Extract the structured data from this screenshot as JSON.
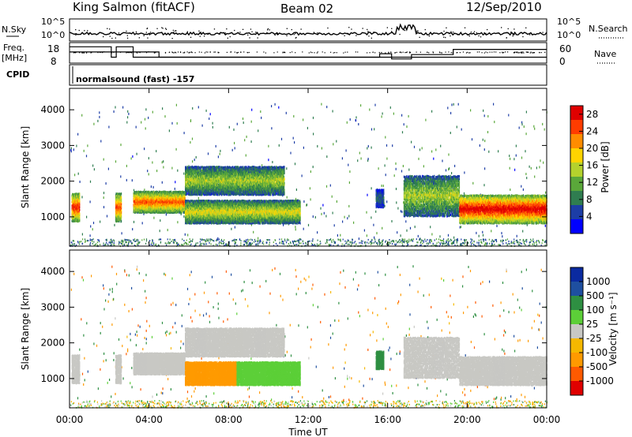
{
  "header": {
    "station": "King Salmon (fitACF)",
    "beam": "Beam 02",
    "date": "12/Sep/2010"
  },
  "summary_panel": {
    "nsky_label": "N.Sky",
    "nsearch_label": "N.Search",
    "nsky_ticks": [
      "10^5",
      "10^0"
    ],
    "nsearch_ticks": [
      "10^5",
      "10^0"
    ],
    "freq_label": "Freq.",
    "freq_unit": "[MHz]",
    "freq_ticks": [
      "18",
      "8"
    ],
    "nave_label": "Nave",
    "nave_ticks": [
      "60",
      "0"
    ],
    "cpid_label": "CPID",
    "cpid_text": "normalsound (fast) -157"
  },
  "colors": {
    "power_bar": [
      "#0000ff",
      "#1c3da6",
      "#2f7d50",
      "#5aa83a",
      "#b4d22d",
      "#ffd400",
      "#ff8c00",
      "#ff3c00",
      "#e00000"
    ],
    "velocity_bar": [
      "#e00000",
      "#ff5a00",
      "#ff9a00",
      "#f5b800",
      "#c8c8c4",
      "#5ccf38",
      "#2e8f42",
      "#1e4fa0",
      "#0a2aa0"
    ],
    "velocity_bar_note": ""
  },
  "chart_data": [
    {
      "type": "heatmap",
      "title": "",
      "xlabel": "Time UT",
      "ylabel": "Slant Range [km]",
      "x_ticks": [
        "00:00",
        "04:00",
        "08:00",
        "12:00",
        "16:00",
        "20:00",
        "00:00"
      ],
      "xlim_hours": [
        0,
        24
      ],
      "y_ticks": [
        1000,
        2000,
        3000,
        4000
      ],
      "ylim": [
        180,
        4600
      ],
      "colorbar": {
        "label": "Power [dB]",
        "ticks": [
          4,
          8,
          12,
          16,
          20,
          24,
          28
        ],
        "range": [
          0,
          30
        ]
      },
      "scatter_regions": [
        {
          "t_start": 0.1,
          "t_end": 0.5,
          "r_low": 900,
          "r_high": 1700,
          "level": 22
        },
        {
          "t_start": 2.3,
          "t_end": 2.6,
          "r_low": 900,
          "r_high": 1700,
          "level": 20
        },
        {
          "t_start": 3.2,
          "t_end": 5.8,
          "r_low": 1150,
          "r_high": 1750,
          "level": 20
        },
        {
          "t_start": 5.8,
          "t_end": 10.8,
          "r_low": 1650,
          "r_high": 2450,
          "level": 12
        },
        {
          "t_start": 5.8,
          "t_end": 11.6,
          "r_low": 850,
          "r_high": 1500,
          "level": 14
        },
        {
          "t_start": 15.4,
          "t_end": 15.8,
          "r_low": 1300,
          "r_high": 1800,
          "level": 6
        },
        {
          "t_start": 16.8,
          "t_end": 19.6,
          "r_low": 1050,
          "r_high": 2200,
          "level": 12
        },
        {
          "t_start": 19.6,
          "t_end": 24.0,
          "r_low": 850,
          "r_high": 1650,
          "level": 24
        }
      ]
    },
    {
      "type": "heatmap",
      "title": "",
      "xlabel": "Time UT",
      "ylabel": "Slant Range [km]",
      "x_ticks": [
        "00:00",
        "04:00",
        "08:00",
        "12:00",
        "16:00",
        "20:00",
        "00:00"
      ],
      "xlim_hours": [
        0,
        24
      ],
      "y_ticks": [
        1000,
        2000,
        3000,
        4000
      ],
      "ylim": [
        180,
        4600
      ],
      "colorbar": {
        "label": "Velocity [m s⁻¹]",
        "ticks": [
          1000,
          500,
          100,
          25,
          -25,
          -100,
          -500,
          -1000
        ],
        "range": [
          -1000,
          1000
        ]
      },
      "scatter_regions": [
        {
          "t_start": 0.1,
          "t_end": 0.5,
          "r_low": 900,
          "r_high": 1700,
          "velocity": 0
        },
        {
          "t_start": 2.3,
          "t_end": 2.6,
          "r_low": 900,
          "r_high": 1700,
          "velocity": 0
        },
        {
          "t_start": 3.2,
          "t_end": 5.8,
          "r_low": 1150,
          "r_high": 1750,
          "velocity": 0
        },
        {
          "t_start": 5.8,
          "t_end": 10.8,
          "r_low": 1650,
          "r_high": 2450,
          "velocity": 0
        },
        {
          "t_start": 5.8,
          "t_end": 8.4,
          "r_low": 850,
          "r_high": 1500,
          "velocity": -150
        },
        {
          "t_start": 8.4,
          "t_end": 11.6,
          "r_low": 850,
          "r_high": 1500,
          "velocity": 80
        },
        {
          "t_start": 15.4,
          "t_end": 15.8,
          "r_low": 1300,
          "r_high": 1800,
          "velocity": 200
        },
        {
          "t_start": 16.8,
          "t_end": 19.6,
          "r_low": 1050,
          "r_high": 2200,
          "velocity": 0
        },
        {
          "t_start": 19.6,
          "t_end": 24.0,
          "r_low": 850,
          "r_high": 1650,
          "velocity": 0
        }
      ]
    }
  ]
}
